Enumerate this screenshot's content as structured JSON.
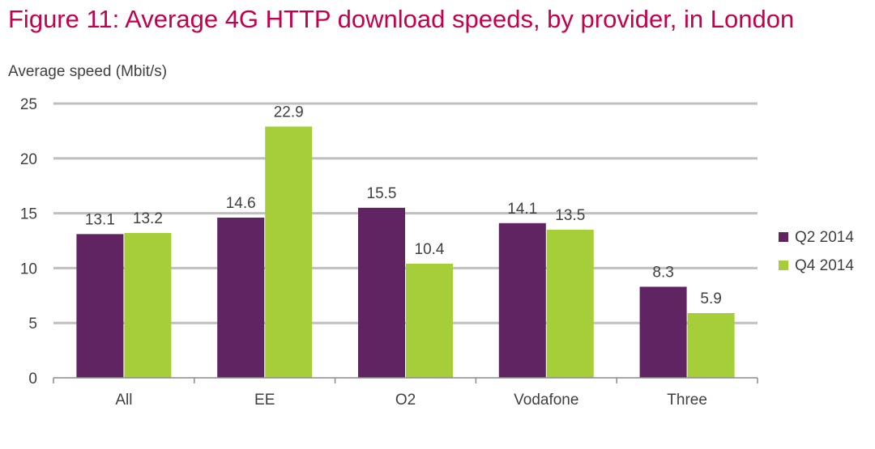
{
  "title": "Figure 11: Average 4G HTTP download speeds, by provider, in London",
  "chart_data": {
    "type": "bar",
    "title": "Figure 11: Average 4G HTTP download speeds, by provider, in London",
    "ylabel": "Average speed (Mbit/s)",
    "xlabel": "",
    "ylim": [
      0,
      25
    ],
    "yticks": [
      "0",
      "5",
      "10",
      "15",
      "20",
      "25"
    ],
    "grid": true,
    "legend": "right",
    "categories": [
      "All",
      "EE",
      "O2",
      "Vodafone",
      "Three"
    ],
    "series": [
      {
        "name": "Q2 2014",
        "color": "#612463",
        "values": [
          13.1,
          14.6,
          15.5,
          14.1,
          8.3
        ],
        "labels": [
          "13.1",
          "14.6",
          "15.5",
          "14.1",
          "8.3"
        ]
      },
      {
        "name": "Q4 2014",
        "color": "#a6ce39",
        "values": [
          13.2,
          22.9,
          10.4,
          13.5,
          5.9
        ],
        "labels": [
          "13.2",
          "22.9",
          "10.4",
          "13.5",
          "5.9"
        ]
      }
    ]
  }
}
